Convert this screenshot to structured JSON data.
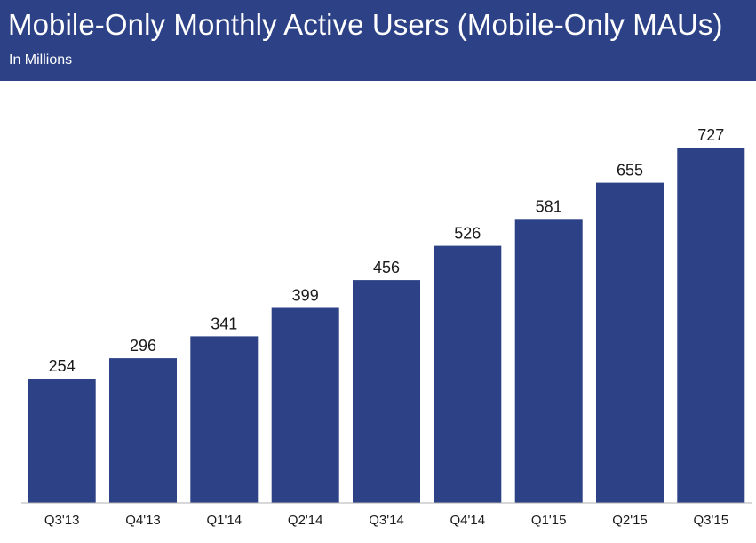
{
  "header": {
    "title": "Mobile-Only Monthly Active Users (Mobile-Only MAUs)",
    "subtitle": "In Millions"
  },
  "colors": {
    "header_background": "#2d4286",
    "bar": "#2d4286",
    "axis": "#b0b0b0"
  },
  "chart_data": {
    "type": "bar",
    "title": "Mobile-Only Monthly Active Users (Mobile-Only MAUs)",
    "subtitle": "In Millions",
    "categories": [
      "Q3'13",
      "Q4'13",
      "Q1'14",
      "Q2'14",
      "Q3'14",
      "Q4'14",
      "Q1'15",
      "Q2'15",
      "Q3'15"
    ],
    "values": [
      254,
      296,
      341,
      399,
      456,
      526,
      581,
      655,
      727
    ],
    "data_labels": [
      "254",
      "296",
      "341",
      "399",
      "456",
      "526",
      "581",
      "655",
      "727"
    ],
    "xlabel": "",
    "ylabel": "",
    "ylim": [
      0,
      727
    ],
    "grid": false,
    "legend": "none"
  }
}
